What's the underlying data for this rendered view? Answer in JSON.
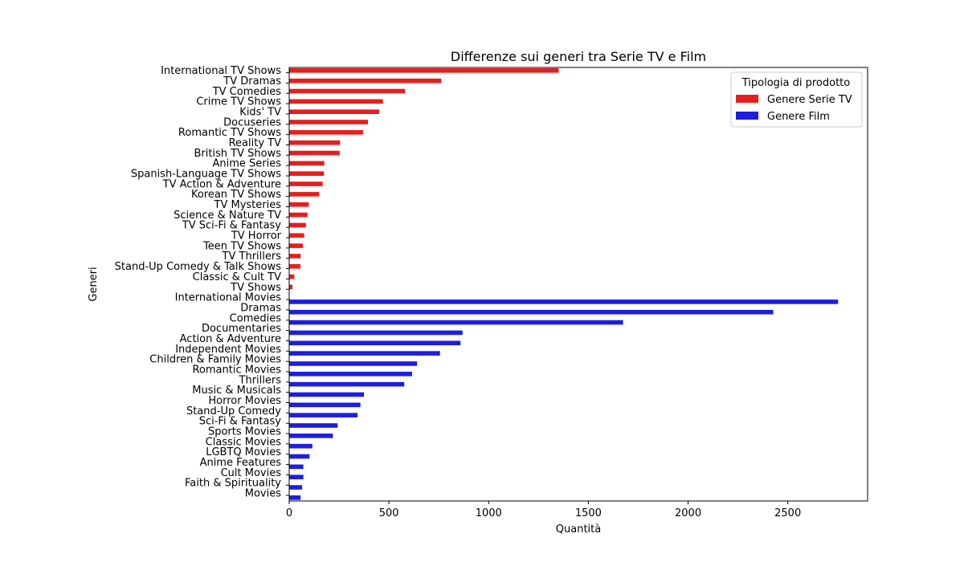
{
  "chart_data": {
    "type": "bar",
    "orientation": "horizontal",
    "title": "Differenze sui generi tra Serie TV e Film",
    "xlabel": "Quantità",
    "ylabel": "Generi",
    "xlim": [
      0,
      2900
    ],
    "xticks": [
      0,
      500,
      1000,
      1500,
      2000,
      2500
    ],
    "grid": false,
    "legend": {
      "title": "Tipologia di prodotto",
      "placement": "top-right"
    },
    "categories": [
      "International TV Shows",
      "TV Dramas",
      "TV Comedies",
      "Crime TV Shows",
      "Kids' TV",
      "Docuseries",
      "Romantic TV Shows",
      "Reality TV",
      "British TV Shows",
      "Anime Series",
      "Spanish-Language TV Shows",
      "TV Action & Adventure",
      "Korean TV Shows",
      "TV Mysteries",
      "Science & Nature TV",
      "TV Sci-Fi & Fantasy",
      "TV Horror",
      "Teen TV Shows",
      "TV Thrillers",
      "Stand-Up Comedy & Talk Shows",
      "Classic & Cult TV",
      "TV Shows",
      "International Movies",
      "Dramas",
      "Comedies",
      "Documentaries",
      "Action & Adventure",
      "Independent Movies",
      "Children & Family Movies",
      "Romantic Movies",
      "Thrillers",
      "Music & Musicals",
      "Horror Movies",
      "Stand-Up Comedy",
      "Sci-Fi & Fantasy",
      "Sports Movies",
      "Classic Movies",
      "LGBTQ Movies",
      "Anime Features",
      "Cult Movies",
      "Faith & Spirituality",
      "Movies"
    ],
    "series": [
      {
        "name": "Genere Serie TV",
        "color": "#e51e1e",
        "values": [
          1351,
          763,
          581,
          470,
          451,
          395,
          370,
          255,
          253,
          176,
          174,
          168,
          151,
          98,
          92,
          84,
          75,
          69,
          57,
          56,
          26,
          16,
          null,
          null,
          null,
          null,
          null,
          null,
          null,
          null,
          null,
          null,
          null,
          null,
          null,
          null,
          null,
          null,
          null,
          null,
          null,
          null
        ]
      },
      {
        "name": "Genere Film",
        "color": "#1e1ee0",
        "values": [
          null,
          null,
          null,
          null,
          null,
          null,
          null,
          null,
          null,
          null,
          null,
          null,
          null,
          null,
          null,
          null,
          null,
          null,
          null,
          null,
          null,
          null,
          2752,
          2427,
          1674,
          869,
          859,
          756,
          641,
          616,
          577,
          375,
          357,
          343,
          243,
          219,
          116,
          102,
          71,
          71,
          65,
          57
        ]
      }
    ]
  }
}
